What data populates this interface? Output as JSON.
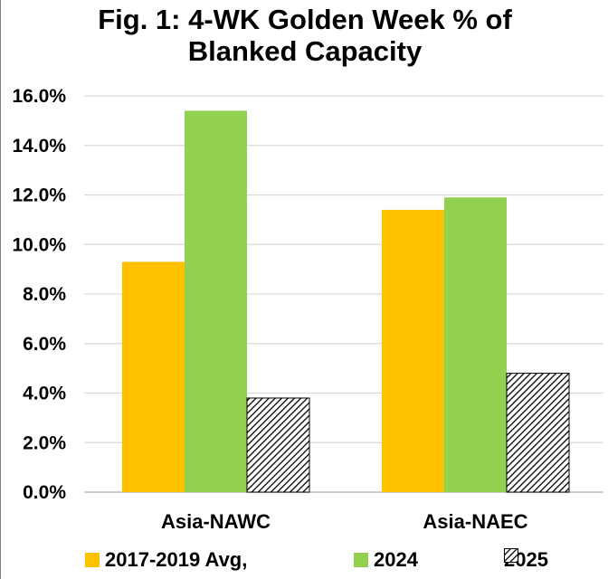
{
  "chart_data": {
    "type": "bar",
    "title_line1": "Fig. 1: 4-WK Golden Week % of",
    "title_line2": "Blanked Capacity",
    "categories": [
      "Asia-NAWC",
      "Asia-NAEC"
    ],
    "series": [
      {
        "name": "2017-2019 Avg,",
        "values": [
          9.3,
          11.4
        ],
        "color": "#ffc000",
        "pattern": "solid"
      },
      {
        "name": "2024",
        "values": [
          15.4,
          11.9
        ],
        "color": "#92d050",
        "pattern": "solid"
      },
      {
        "name": "2025",
        "values": [
          3.8,
          4.8
        ],
        "color": "#000000",
        "pattern": "diagonal-hatch"
      }
    ],
    "ylim": [
      0,
      16
    ],
    "y_ticks": [
      "0.0%",
      "2.0%",
      "4.0%",
      "6.0%",
      "8.0%",
      "10.0%",
      "12.0%",
      "14.0%",
      "16.0%"
    ],
    "xlabel": "",
    "ylabel": "",
    "grid": true,
    "gridline_color": "#d9d9d9",
    "legend_position": "bottom"
  }
}
